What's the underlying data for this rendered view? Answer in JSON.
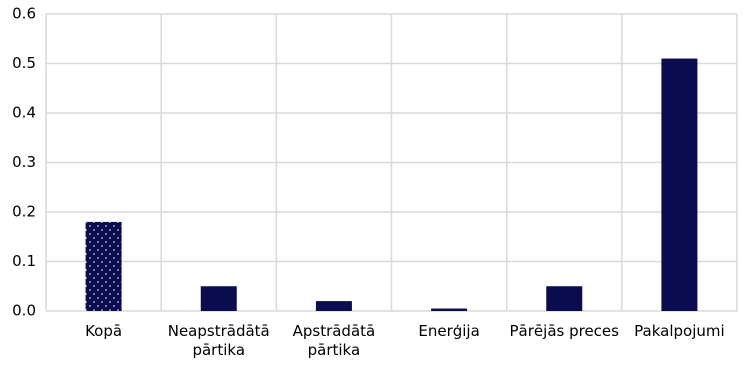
{
  "chart_data": {
    "type": "bar",
    "categories": [
      "Kopā",
      "Neapstrādātā pārtika",
      "Apstrādātā pārtika",
      "Enerģija",
      "Pārējās preces",
      "Pakalpojumi"
    ],
    "values": [
      0.18,
      0.05,
      0.02,
      0.005,
      0.05,
      0.51
    ],
    "color": "#0b0c50",
    "patterns": [
      "dots",
      "solid",
      "solid",
      "solid",
      "solid",
      "solid"
    ],
    "ylim": [
      0,
      0.6
    ],
    "yticks": [
      {
        "value": 0,
        "label": "0.0"
      },
      0.1,
      0.2,
      0.3,
      0.4,
      0.5,
      0.6
    ],
    "grid": true
  }
}
